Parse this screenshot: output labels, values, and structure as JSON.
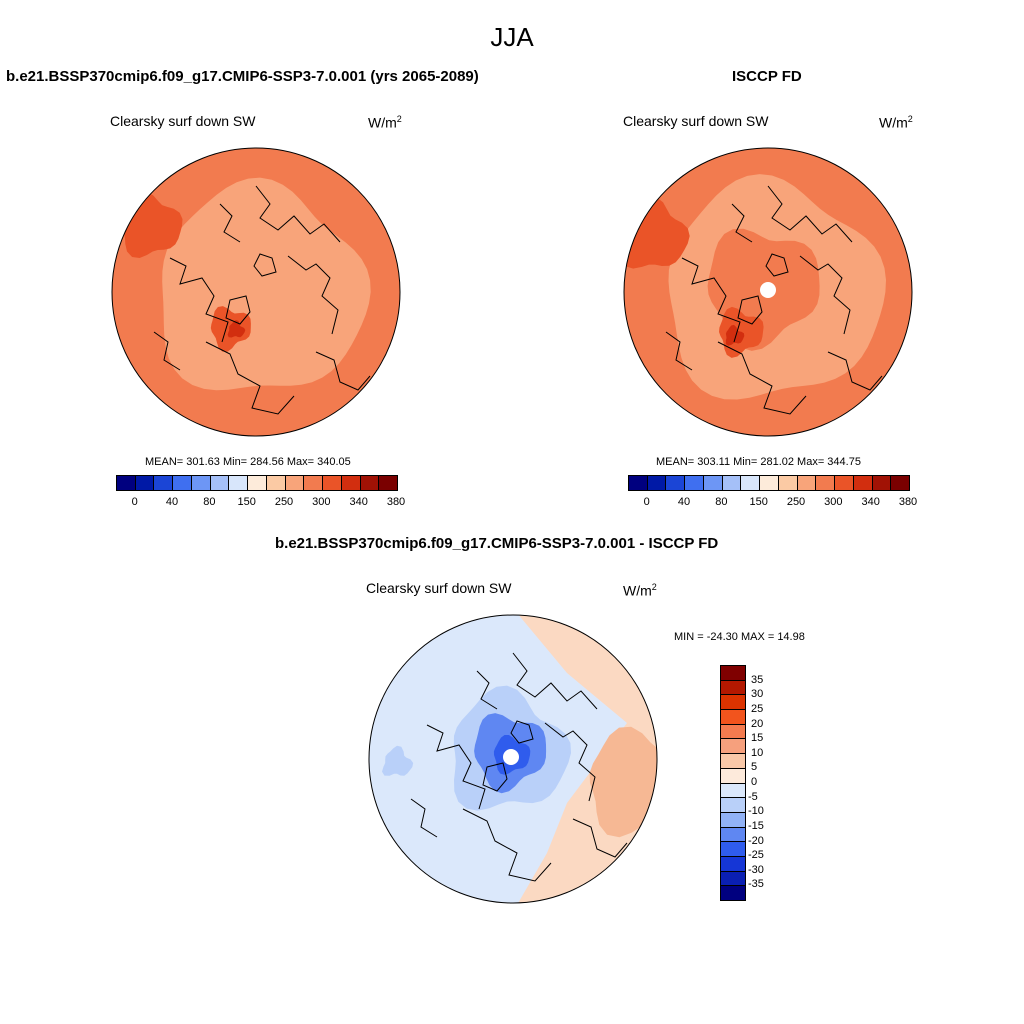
{
  "season": "JJA",
  "panels": [
    {
      "case_title": "b.e21.BSSP370cmip6.f09_g17.CMIP6-SSP3-7.0.001 (yrs 2065-2089)",
      "variable": "Clearsky surf down SW",
      "units_base": "W/m",
      "units_exp": "2",
      "stats": "MEAN= 301.63  Min= 284.56  Max= 340.05"
    },
    {
      "case_title": "ISCCP FD",
      "variable": "Clearsky surf down SW",
      "units_base": "W/m",
      "units_exp": "2",
      "stats": "MEAN= 303.11  Min= 281.02  Max= 344.75"
    },
    {
      "case_title": "b.e21.BSSP370cmip6.f09_g17.CMIP6-SSP3-7.0.001 - ISCCP FD",
      "variable": "Clearsky surf down SW",
      "units_base": "W/m",
      "units_exp": "2",
      "stats": "MIN = -24.30 MAX =  14.98"
    }
  ],
  "abs_colorbar": {
    "colors": [
      "#00007f",
      "#0019a6",
      "#1b45d6",
      "#3f6ff0",
      "#6d96f5",
      "#a5c0f8",
      "#d8e6fb",
      "#fdebda",
      "#fbcaa4",
      "#f8a47a",
      "#f27b4f",
      "#ea5428",
      "#d22e0f",
      "#a11205",
      "#7a0000"
    ],
    "labels": [
      "0",
      "40",
      "80",
      "150",
      "250",
      "300",
      "340",
      "380"
    ]
  },
  "diff_colorbar": {
    "colors": [
      "#7f0000",
      "#b31800",
      "#dc3300",
      "#f2541d",
      "#f47b4f",
      "#f6a07d",
      "#f9c8a8",
      "#fdeadb",
      "#dbe8fb",
      "#b9d0f9",
      "#91b2f6",
      "#5f87f2",
      "#2f5ced",
      "#1536d6",
      "#0a1fb3",
      "#00007f"
    ],
    "labels": [
      "35",
      "30",
      "25",
      "20",
      "15",
      "10",
      "5",
      "0",
      "-5",
      "-10",
      "-15",
      "-20",
      "-25",
      "-30",
      "-35"
    ]
  },
  "map_colors": {
    "ocean_abs": "#f27b4f",
    "land_abs": "#f8a47a",
    "high_abs": "#ea5428",
    "peak_abs": "#d22e0f",
    "diff_base": "#dbe8fb",
    "diff_warm": "#fbd9c2",
    "diff_warm2": "#f6b894",
    "diff_cool1": "#b9d0f9",
    "diff_cool2": "#5f87f2",
    "diff_cool3": "#2f5ced",
    "pole_hole": "#ffffff",
    "coast": "#000000"
  }
}
